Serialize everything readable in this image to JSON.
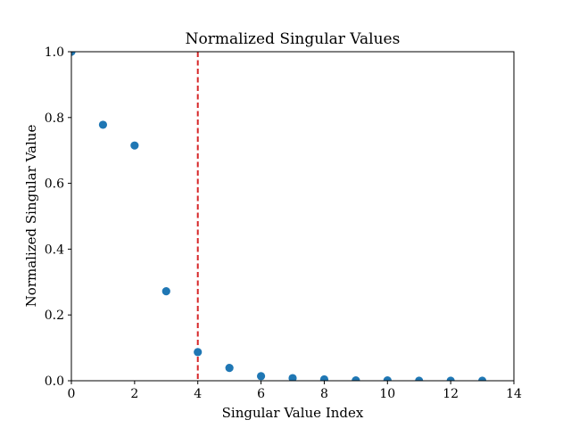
{
  "chart_data": {
    "type": "scatter",
    "title": "Normalized Singular Values",
    "xlabel": "Singular Value Index",
    "ylabel": "Normalized Singular Value",
    "xlim": [
      0,
      14
    ],
    "ylim": [
      0.0,
      1.0
    ],
    "x_ticks": [
      "0",
      "2",
      "4",
      "6",
      "8",
      "10",
      "12",
      "14"
    ],
    "y_ticks": [
      "0.0",
      "0.2",
      "0.4",
      "0.6",
      "0.8",
      "1.0"
    ],
    "grid": false,
    "legend": "none",
    "series": [
      {
        "color": "#1f77b4",
        "x": [
          0,
          1,
          2,
          3,
          4,
          5,
          6,
          7,
          8,
          9,
          10,
          11,
          12,
          13
        ],
        "y": [
          1.0,
          0.778,
          0.715,
          0.272,
          0.087,
          0.039,
          0.014,
          0.008,
          0.004,
          0.001,
          0.001,
          0.0,
          0.0,
          0.0
        ]
      }
    ],
    "annotations": [
      {
        "type": "vertical-line",
        "x": 4,
        "style": "dashed",
        "color": "#d62728"
      }
    ]
  }
}
